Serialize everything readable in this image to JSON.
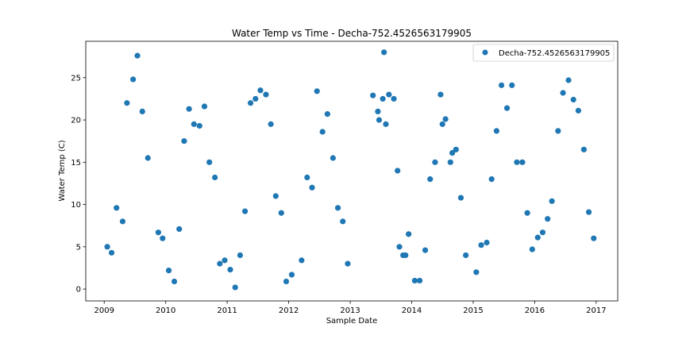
{
  "chart_data": {
    "type": "scatter",
    "title": "Water Temp vs Time - Decha-752.4526563179905",
    "xlabel": "Sample Date",
    "ylabel": "Water Temp (C)",
    "xlim": [
      2008.7,
      2017.35
    ],
    "ylim": [
      -1.4,
      29.3
    ],
    "xticks": [
      2009,
      2010,
      2011,
      2012,
      2013,
      2014,
      2015,
      2016,
      2017
    ],
    "yticks": [
      0,
      5,
      10,
      15,
      20,
      25
    ],
    "grid": false,
    "legend_position": "top-right",
    "series": [
      {
        "name": "Decha-752.4526563179905",
        "color": "#1f77b4",
        "x": [
          2009.05,
          2009.12,
          2009.2,
          2009.3,
          2009.37,
          2009.47,
          2009.54,
          2009.62,
          2009.71,
          2009.88,
          2009.95,
          2010.05,
          2010.14,
          2010.22,
          2010.3,
          2010.38,
          2010.46,
          2010.55,
          2010.63,
          2010.71,
          2010.8,
          2010.88,
          2010.96,
          2011.05,
          2011.13,
          2011.21,
          2011.29,
          2011.38,
          2011.46,
          2011.54,
          2011.63,
          2011.71,
          2011.79,
          2011.88,
          2011.96,
          2012.05,
          2012.21,
          2012.3,
          2012.38,
          2012.46,
          2012.55,
          2012.63,
          2012.72,
          2012.8,
          2012.88,
          2012.96,
          2013.37,
          2013.45,
          2013.47,
          2013.53,
          2013.55,
          2013.58,
          2013.63,
          2013.71,
          2013.77,
          2013.8,
          2013.86,
          2013.9,
          2013.95,
          2014.05,
          2014.13,
          2014.22,
          2014.3,
          2014.38,
          2014.47,
          2014.5,
          2014.55,
          2014.63,
          2014.66,
          2014.72,
          2014.8,
          2014.88,
          2015.05,
          2015.13,
          2015.22,
          2015.3,
          2015.38,
          2015.46,
          2015.55,
          2015.63,
          2015.71,
          2015.8,
          2015.88,
          2015.96,
          2016.05,
          2016.13,
          2016.21,
          2016.28,
          2016.38,
          2016.46,
          2016.55,
          2016.63,
          2016.71,
          2016.8,
          2016.88,
          2016.96
        ],
        "y": [
          5.0,
          4.3,
          9.6,
          8.0,
          22.0,
          24.8,
          27.6,
          21.0,
          15.5,
          6.7,
          6.0,
          2.2,
          0.9,
          7.1,
          17.5,
          21.3,
          19.5,
          19.3,
          21.6,
          15.0,
          13.2,
          3.0,
          3.4,
          2.3,
          0.2,
          4.0,
          9.2,
          22.0,
          22.5,
          23.5,
          23.0,
          19.5,
          11.0,
          9.0,
          0.9,
          1.7,
          3.4,
          13.2,
          12.0,
          23.4,
          18.6,
          20.7,
          15.5,
          9.6,
          8.0,
          3.0,
          22.9,
          21.0,
          20.0,
          22.5,
          28.0,
          19.5,
          23.0,
          22.5,
          14.0,
          5.0,
          4.0,
          4.0,
          6.5,
          1.0,
          1.0,
          4.6,
          13.0,
          15.0,
          23.0,
          19.5,
          20.1,
          15.0,
          16.1,
          16.5,
          10.8,
          4.0,
          2.0,
          5.2,
          5.5,
          13.0,
          18.7,
          24.1,
          21.4,
          24.1,
          15.0,
          15.0,
          9.0,
          4.7,
          6.1,
          6.7,
          8.3,
          10.4,
          18.7,
          23.2,
          24.7,
          22.4,
          21.1,
          16.5,
          9.1,
          6.0
        ]
      }
    ]
  }
}
